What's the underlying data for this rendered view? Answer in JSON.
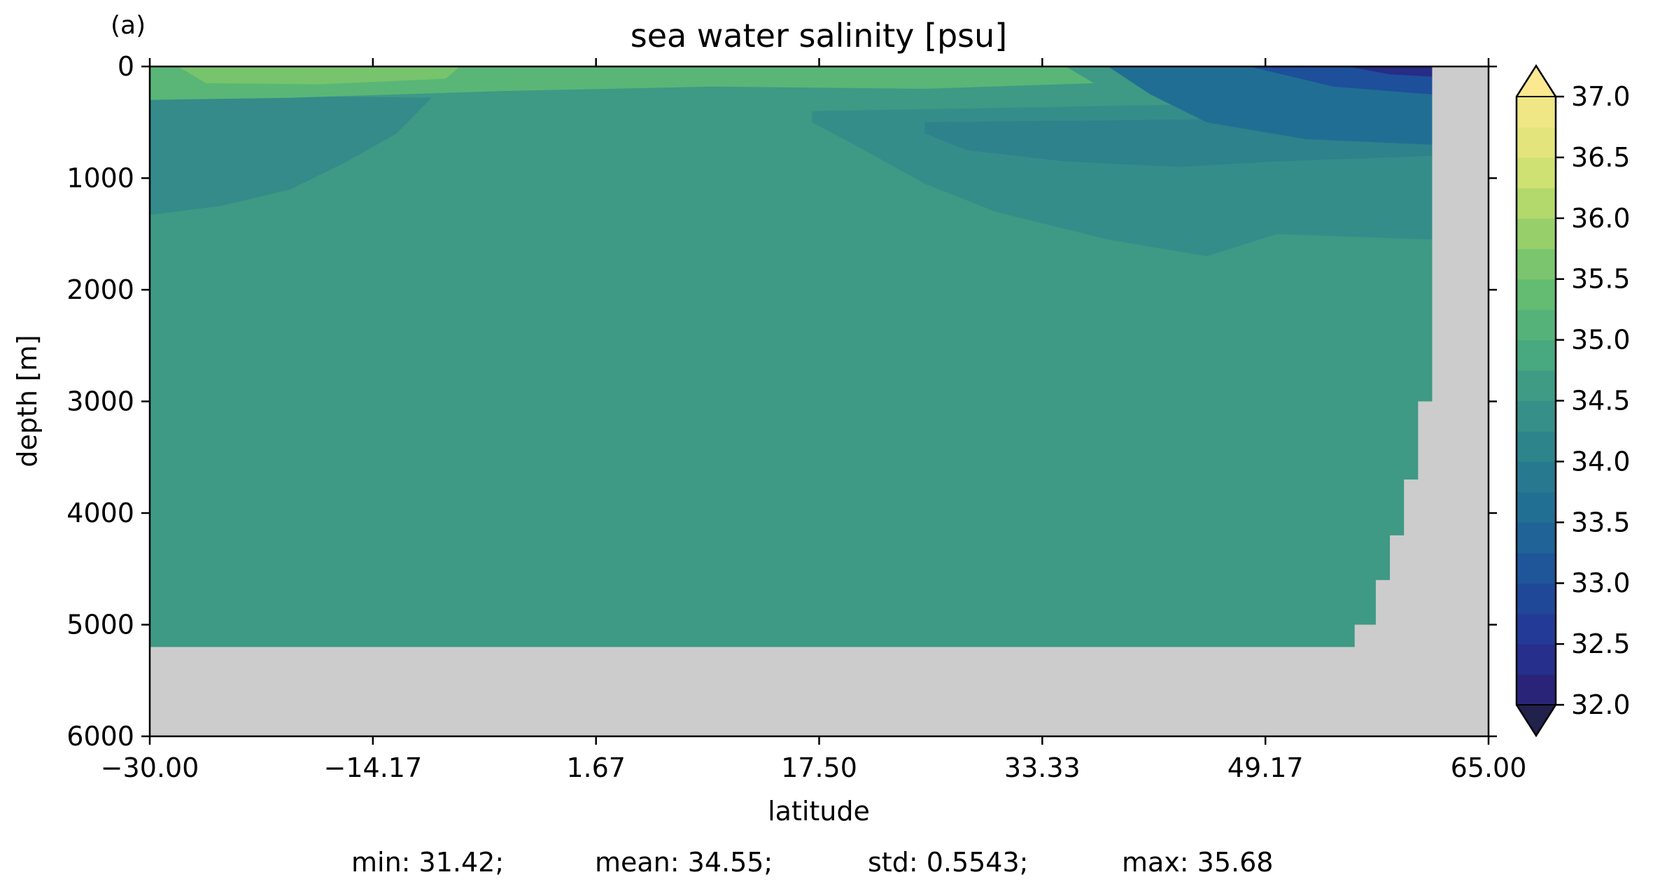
{
  "panel_label": "(a)",
  "chart_data": {
    "type": "heatmap",
    "title": "sea water salinity [psu]",
    "xlabel": "latitude",
    "ylabel": "depth [m]",
    "xlim": [
      -30.0,
      65.0
    ],
    "ylim": [
      6000,
      0
    ],
    "y_inverted": true,
    "x_ticks": [
      "−30.00",
      "−14.17",
      "1.67",
      "17.50",
      "33.33",
      "49.17",
      "65.00"
    ],
    "y_ticks": [
      "0",
      "1000",
      "2000",
      "3000",
      "4000",
      "5000",
      "6000"
    ],
    "colorbar": {
      "colormap": "YlGnBu_r (sequential, dark navy → teal → green → pale yellow)",
      "levels": [
        32.0,
        32.25,
        32.5,
        32.75,
        33.0,
        33.25,
        33.5,
        33.75,
        34.0,
        34.25,
        34.5,
        34.75,
        35.0,
        35.25,
        35.5,
        35.75,
        36.0,
        36.25,
        36.5,
        36.75,
        37.0
      ],
      "tick_labels": [
        "32.0",
        "32.5",
        "33.0",
        "33.5",
        "34.0",
        "34.5",
        "35.0",
        "35.5",
        "36.0",
        "36.5",
        "37.0"
      ],
      "extend": "both",
      "under_color": "#21214b",
      "over_color": "#fbe890"
    },
    "field": {
      "background_salinity": 34.6,
      "surface_max_salinity": 35.6,
      "surface_max_latitude": -22.0,
      "surface_min_salinity": 32.3,
      "surface_min_latitude": 60.0,
      "deep_water_salinity": 34.6,
      "intermediate_low_salinity_southern": 34.3,
      "intermediate_low_salinity_northern": 34.2
    },
    "land_mask_color": "#cccccc",
    "bottom_depth_profile": [
      {
        "lat": -30.0,
        "depth": 5200
      },
      {
        "lat": 54.6,
        "depth": 5200
      },
      {
        "lat": 55.5,
        "depth": 5000
      },
      {
        "lat": 57.0,
        "depth": 4600
      },
      {
        "lat": 58.0,
        "depth": 4200
      },
      {
        "lat": 59.0,
        "depth": 3700
      },
      {
        "lat": 60.0,
        "depth": 3000
      },
      {
        "lat": 61.0,
        "depth": 0
      },
      {
        "lat": 65.0,
        "depth": 0
      }
    ]
  },
  "stats": {
    "min": "min: 31.42;",
    "mean": "mean: 34.55;",
    "std": "std: 0.5543;",
    "max": "max: 35.68"
  }
}
